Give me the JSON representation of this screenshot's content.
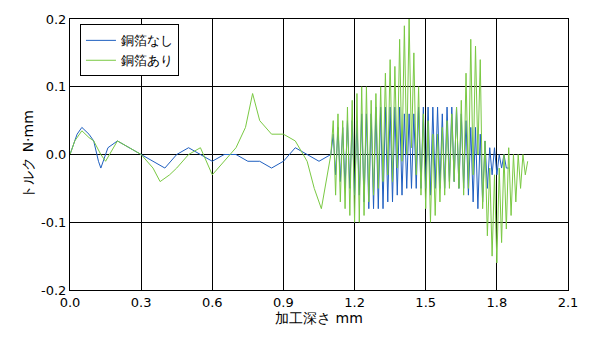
{
  "chart_data": {
    "type": "line",
    "x_label": "加工深さ mm",
    "y_label": "トルク N·mm",
    "xlim": [
      0.0,
      2.1
    ],
    "xticks": [
      {
        "value": 0,
        "label": "0.0"
      },
      0.3,
      0.6,
      0.9,
      1.2,
      1.5,
      1.8,
      2.1
    ],
    "ylim": [
      -0.2,
      0.2
    ],
    "yticks": [
      -0.2,
      -0.1,
      {
        "value": 0,
        "label": "0.0"
      },
      0.1,
      0.2
    ],
    "grid": true,
    "legend": "upper left",
    "series": [
      {
        "name": "銅箔なし",
        "color": "#1f5fc0",
        "x": [
          0,
          0.03,
          0.05,
          0.08,
          0.1,
          0.12,
          0.13,
          0.16,
          0.2,
          0.25,
          0.3,
          0.35,
          0.4,
          0.45,
          0.5,
          0.55,
          0.6,
          0.65,
          0.7,
          0.75,
          0.8,
          0.85,
          0.9,
          0.95,
          1.0,
          1.05,
          1.1,
          1.11,
          1.12,
          1.13,
          1.14,
          1.15,
          1.16,
          1.17,
          1.18,
          1.19,
          1.2,
          1.21,
          1.22,
          1.23,
          1.24,
          1.25,
          1.26,
          1.27,
          1.28,
          1.29,
          1.3,
          1.31,
          1.32,
          1.33,
          1.34,
          1.35,
          1.36,
          1.37,
          1.38,
          1.39,
          1.4,
          1.41,
          1.42,
          1.43,
          1.44,
          1.45,
          1.46,
          1.47,
          1.48,
          1.49,
          1.5,
          1.51,
          1.52,
          1.53,
          1.54,
          1.55,
          1.56,
          1.57,
          1.58,
          1.59,
          1.6,
          1.61,
          1.62,
          1.63,
          1.64,
          1.65,
          1.66,
          1.67,
          1.68,
          1.69,
          1.7,
          1.71,
          1.72,
          1.73,
          1.74,
          1.75,
          1.76,
          1.77,
          1.78,
          1.79,
          1.8,
          1.81,
          1.82,
          1.83,
          1.84,
          1.85
        ],
        "values": [
          0,
          0.03,
          0.04,
          0.03,
          0.02,
          -0.01,
          -0.02,
          0.01,
          0.02,
          0.01,
          0,
          -0.01,
          -0.02,
          0,
          0.01,
          0,
          -0.01,
          0,
          0,
          -0.01,
          -0.01,
          -0.02,
          -0.01,
          0.01,
          0,
          -0.01,
          0,
          0.03,
          -0.03,
          0.04,
          -0.04,
          0.04,
          -0.05,
          0.05,
          -0.05,
          0.05,
          -0.06,
          0.05,
          -0.06,
          0.06,
          -0.07,
          0.06,
          -0.08,
          0.06,
          -0.08,
          0.07,
          -0.08,
          0.07,
          -0.08,
          0.07,
          -0.07,
          0.07,
          -0.07,
          0.07,
          -0.06,
          0.07,
          -0.06,
          0.06,
          -0.05,
          0.06,
          -0.05,
          0.06,
          -0.05,
          0.07,
          -0.05,
          0.07,
          -0.05,
          0.07,
          -0.06,
          0.07,
          -0.05,
          0.07,
          -0.05,
          0.06,
          -0.05,
          0.07,
          -0.04,
          0.07,
          -0.04,
          0.07,
          -0.05,
          0.06,
          -0.05,
          0.05,
          -0.06,
          0.04,
          -0.07,
          0.04,
          -0.08,
          0.03,
          -0.07,
          0.02,
          -0.05,
          0.01,
          -0.03,
          0.01,
          -0.03,
          0,
          -0.02,
          0,
          -0.02,
          -0.02
        ]
      },
      {
        "name": "銅箔あり",
        "color": "#7ac943",
        "x": [
          0,
          0.02,
          0.05,
          0.08,
          0.1,
          0.13,
          0.15,
          0.2,
          0.25,
          0.3,
          0.35,
          0.38,
          0.42,
          0.45,
          0.5,
          0.55,
          0.6,
          0.65,
          0.7,
          0.74,
          0.77,
          0.8,
          0.85,
          0.9,
          0.95,
          1.0,
          1.03,
          1.06,
          1.08,
          1.1,
          1.11,
          1.12,
          1.13,
          1.14,
          1.15,
          1.16,
          1.17,
          1.18,
          1.19,
          1.2,
          1.21,
          1.22,
          1.23,
          1.24,
          1.25,
          1.26,
          1.27,
          1.28,
          1.29,
          1.3,
          1.31,
          1.32,
          1.33,
          1.34,
          1.35,
          1.36,
          1.37,
          1.38,
          1.39,
          1.4,
          1.41,
          1.42,
          1.43,
          1.44,
          1.45,
          1.46,
          1.47,
          1.48,
          1.49,
          1.5,
          1.51,
          1.52,
          1.53,
          1.54,
          1.55,
          1.56,
          1.57,
          1.58,
          1.59,
          1.6,
          1.61,
          1.62,
          1.63,
          1.64,
          1.65,
          1.66,
          1.67,
          1.68,
          1.69,
          1.7,
          1.71,
          1.72,
          1.73,
          1.74,
          1.75,
          1.76,
          1.77,
          1.78,
          1.79,
          1.8,
          1.81,
          1.82,
          1.83,
          1.84,
          1.85,
          1.86,
          1.87,
          1.88,
          1.89,
          1.9,
          1.91,
          1.92,
          1.93
        ],
        "values": [
          0,
          0.02,
          0.035,
          0.025,
          0.02,
          0,
          -0.01,
          0.02,
          0.01,
          0,
          -0.02,
          -0.04,
          -0.03,
          -0.02,
          0,
          0.01,
          -0.03,
          -0.01,
          0.01,
          0.04,
          0.09,
          0.05,
          0.03,
          0.03,
          0.02,
          -0.01,
          -0.05,
          -0.08,
          -0.04,
          0,
          0.05,
          -0.06,
          0.06,
          -0.07,
          0.05,
          -0.08,
          0.07,
          -0.09,
          0.08,
          -0.1,
          0.09,
          -0.1,
          0.1,
          -0.09,
          0.1,
          -0.07,
          0.08,
          -0.06,
          0.09,
          -0.05,
          0.1,
          -0.04,
          0.12,
          -0.03,
          0.14,
          -0.04,
          0.13,
          -0.02,
          0.17,
          -0.01,
          0.19,
          0,
          0.2,
          0.01,
          0.15,
          -0.03,
          0.1,
          -0.06,
          0.06,
          -0.08,
          0.05,
          -0.1,
          0.03,
          -0.09,
          0.03,
          -0.07,
          0.04,
          -0.06,
          0.05,
          -0.05,
          0.06,
          -0.04,
          0.07,
          -0.05,
          0.08,
          -0.06,
          0.12,
          -0.05,
          0.17,
          -0.03,
          0.16,
          0,
          0.14,
          -0.08,
          0.02,
          -0.12,
          -0.02,
          -0.15,
          -0.03,
          -0.16,
          -0.02,
          -0.13,
          0,
          -0.11,
          0.01,
          -0.09,
          0,
          -0.07,
          0,
          -0.05,
          0,
          -0.03,
          -0.01
        ]
      }
    ]
  }
}
